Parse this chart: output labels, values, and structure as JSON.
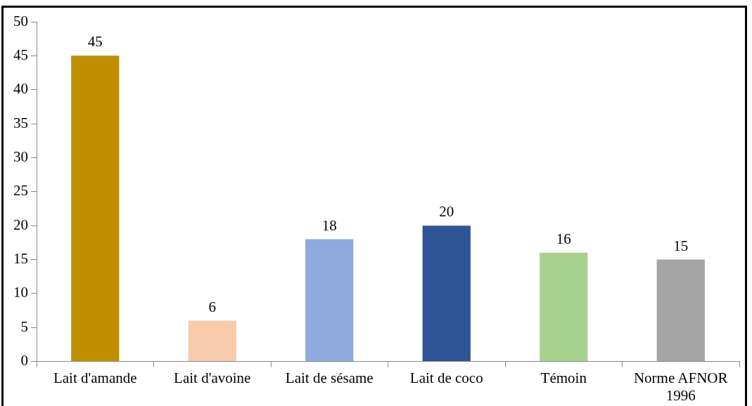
{
  "chart_data": {
    "type": "bar",
    "categories": [
      "Lait d'amande",
      "Lait d'avoine",
      "Lait de sésame",
      "Lait de coco",
      "Témoin",
      "Norme AFNOR 1996"
    ],
    "values": [
      45,
      6,
      18,
      20,
      16,
      15
    ],
    "colors": [
      "#bf8f00",
      "#f8cbad",
      "#8faadc",
      "#2f5597",
      "#a9d18e",
      "#a5a5a5"
    ],
    "ylim": [
      0,
      50
    ],
    "yticks": [
      0,
      5,
      10,
      15,
      20,
      25,
      30,
      35,
      40,
      45,
      50
    ],
    "grid": false,
    "legend": false,
    "data_labels": true
  }
}
